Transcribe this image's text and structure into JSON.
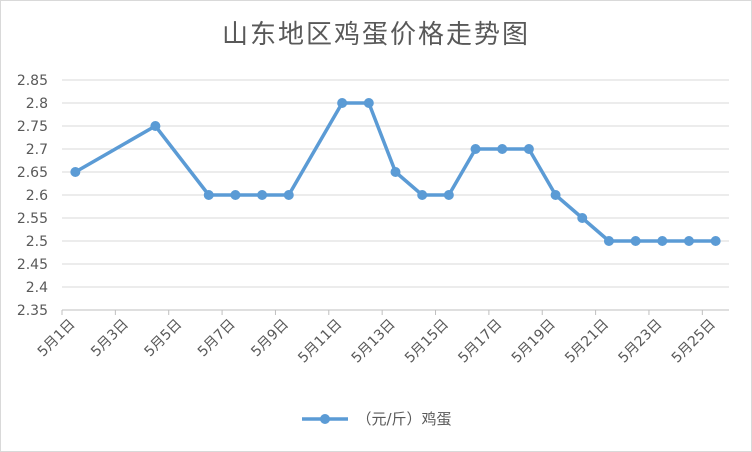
{
  "chart_data": {
    "type": "line",
    "title": "山东地区鸡蛋价格走势图",
    "xlabel": "",
    "ylabel": "",
    "ylim": [
      2.35,
      2.85
    ],
    "yticks": [
      "2.35",
      "2.4",
      "2.45",
      "2.5",
      "2.55",
      "2.6",
      "2.65",
      "2.7",
      "2.75",
      "2.8",
      "2.85"
    ],
    "xtick_labels": [
      "5月1日",
      "5月3日",
      "5月5日",
      "5月7日",
      "5月9日",
      "5月11日",
      "5月13日",
      "5月15日",
      "5月17日",
      "5月19日",
      "5月21日",
      "5月23日",
      "5月25日"
    ],
    "grid": true,
    "legend_position": "bottom",
    "series": [
      {
        "name": "（元/斤）鸡蛋",
        "color": "#5b9bd5",
        "points": [
          {
            "x": "5月1日",
            "y": 2.65
          },
          {
            "x": "5月4日",
            "y": 2.75
          },
          {
            "x": "5月6日",
            "y": 2.6
          },
          {
            "x": "5月7日",
            "y": 2.6
          },
          {
            "x": "5月8日",
            "y": 2.6
          },
          {
            "x": "5月9日",
            "y": 2.6
          },
          {
            "x": "5月11日",
            "y": 2.8
          },
          {
            "x": "5月12日",
            "y": 2.8
          },
          {
            "x": "5月13日",
            "y": 2.65
          },
          {
            "x": "5月14日",
            "y": 2.6
          },
          {
            "x": "5月15日",
            "y": 2.6
          },
          {
            "x": "5月16日",
            "y": 2.7
          },
          {
            "x": "5月17日",
            "y": 2.7
          },
          {
            "x": "5月18日",
            "y": 2.7
          },
          {
            "x": "5月19日",
            "y": 2.6
          },
          {
            "x": "5月20日",
            "y": 2.55
          },
          {
            "x": "5月21日",
            "y": 2.5
          },
          {
            "x": "5月22日",
            "y": 2.5
          },
          {
            "x": "5月23日",
            "y": 2.5
          },
          {
            "x": "5月24日",
            "y": 2.5
          },
          {
            "x": "5月25日",
            "y": 2.5
          }
        ]
      }
    ]
  }
}
